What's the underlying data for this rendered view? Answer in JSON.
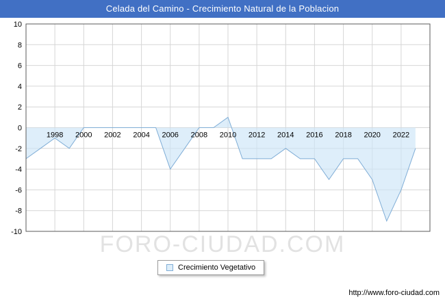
{
  "header": {
    "title": "Celada del Camino - Crecimiento Natural de la Poblacion",
    "bg_color": "#4170c4"
  },
  "legend": {
    "label": "Crecimiento Vegetativo"
  },
  "watermark": "FORO-CIUDAD.COM",
  "footer": {
    "url": "http://www.foro-ciudad.com"
  },
  "chart_data": {
    "type": "area",
    "title": "Celada del Camino - Crecimiento Natural de la Poblacion",
    "series_name": "Crecimiento Vegetativo",
    "x": [
      1996,
      1997,
      1998,
      1999,
      2000,
      2001,
      2002,
      2003,
      2004,
      2005,
      2006,
      2007,
      2008,
      2009,
      2010,
      2011,
      2012,
      2013,
      2014,
      2015,
      2016,
      2017,
      2018,
      2019,
      2020,
      2021,
      2022,
      2023
    ],
    "values": [
      -3,
      -2,
      -1,
      -2,
      0,
      0,
      0,
      0,
      0,
      0,
      -4,
      -2,
      0,
      0,
      1,
      -3,
      -3,
      -3,
      -2,
      -3,
      -3,
      -5,
      -3,
      -3,
      -5,
      -9,
      -6,
      -2
    ],
    "ylim": [
      -10,
      10
    ],
    "ytick_step": 2,
    "x_domain": [
      1996,
      2024
    ],
    "xticks": [
      1998,
      2000,
      2002,
      2004,
      2006,
      2008,
      2010,
      2012,
      2014,
      2016,
      2018,
      2020,
      2022
    ],
    "grid": true,
    "legend_position": "bottom",
    "line_color": "#7fadd6",
    "fill_color": "rgba(205,229,247,0.65)",
    "grid_color": "#d6d6d6",
    "border_color": "#595959"
  }
}
